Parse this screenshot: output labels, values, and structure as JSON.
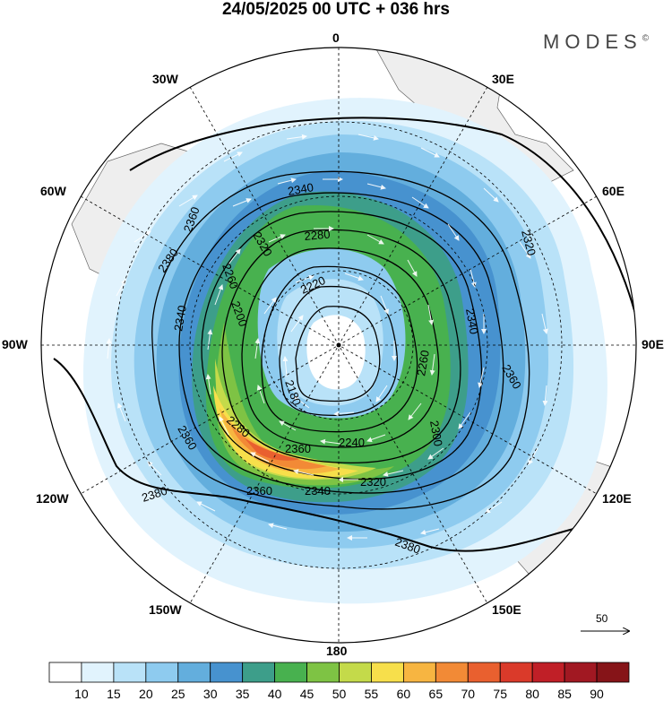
{
  "header": {
    "title": "24/05/2025  00 UTC  + 036 hrs",
    "brand": "MODES",
    "brand_mark": "©"
  },
  "longitude_labels": [
    {
      "id": "lon-0",
      "text": "0"
    },
    {
      "id": "lon-30e",
      "text": "30E"
    },
    {
      "id": "lon-60e",
      "text": "60E"
    },
    {
      "id": "lon-90e",
      "text": "90E"
    },
    {
      "id": "lon-120e",
      "text": "120E"
    },
    {
      "id": "lon-150e",
      "text": "150E"
    },
    {
      "id": "lon-180",
      "text": "180"
    },
    {
      "id": "lon-150w",
      "text": "150W"
    },
    {
      "id": "lon-120w",
      "text": "120W"
    },
    {
      "id": "lon-90w",
      "text": "90W"
    },
    {
      "id": "lon-60w",
      "text": "60W"
    },
    {
      "id": "lon-30w",
      "text": "30W"
    }
  ],
  "contour_labels": [
    "2340",
    "2320",
    "2280",
    "2260",
    "2220",
    "2200",
    "2180",
    "2240",
    "2360",
    "2320",
    "2340",
    "2360",
    "2380",
    "2360",
    "2340",
    "2380",
    "2360",
    "2280",
    "2300",
    "2260",
    "2380",
    "2360",
    "2340",
    "2320"
  ],
  "vector_reference": {
    "label": "50"
  },
  "colorbar": {
    "labels": [
      "10",
      "15",
      "20",
      "25",
      "30",
      "35",
      "40",
      "45",
      "50",
      "55",
      "60",
      "65",
      "70",
      "75",
      "80",
      "85",
      "90"
    ],
    "colors": [
      "#ffffff",
      "#e1f3fd",
      "#b9e2f8",
      "#8ecbef",
      "#63aedd",
      "#4792cf",
      "#3d9e8a",
      "#48b14f",
      "#7ec344",
      "#c4da4a",
      "#f7df4b",
      "#f7b541",
      "#f28a36",
      "#e9602f",
      "#da3a2a",
      "#c01f27",
      "#a11822",
      "#861418"
    ]
  }
}
